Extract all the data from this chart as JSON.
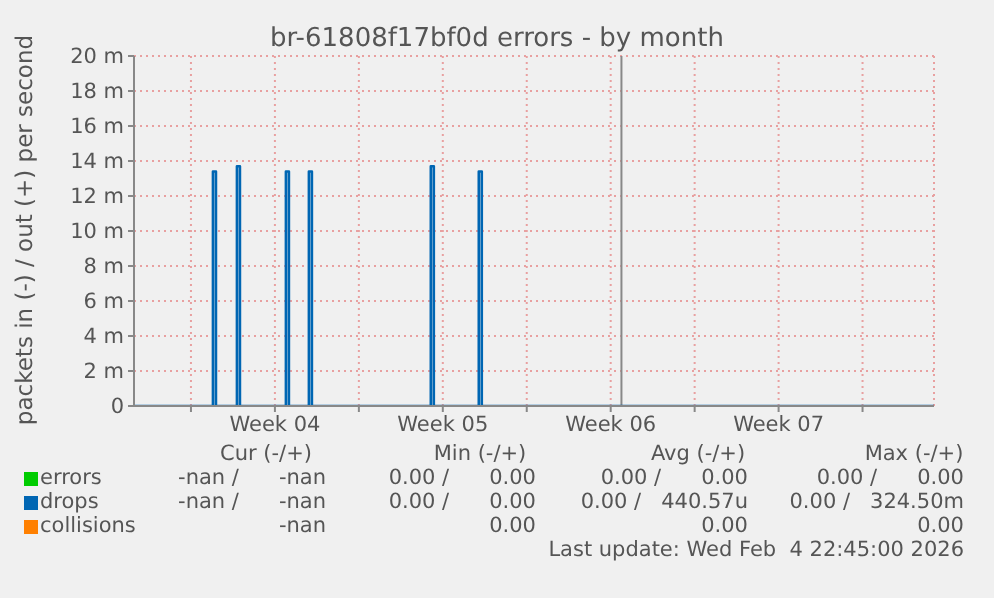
{
  "chart_data": {
    "type": "line",
    "title": "br-61808f17bf0d errors - by month",
    "ylabel": "packets in (-) / out (+) per second",
    "xlim": [
      "2026-01-15T15:00",
      "2026-02-17T23:30"
    ],
    "xticks": [
      {
        "value": "2026-01-18T00:00",
        "label": null
      },
      {
        "value": "2026-01-21T12:00",
        "label": "Week 04"
      },
      {
        "value": "2026-01-25T00:00",
        "label": null
      },
      {
        "value": "2026-01-28T12:00",
        "label": "Week 05"
      },
      {
        "value": "2026-02-01T00:00",
        "label": null
      },
      {
        "value": "2026-02-04T12:00",
        "label": "Week 06"
      },
      {
        "value": "2026-02-08T00:00",
        "label": null
      },
      {
        "value": "2026-02-11T12:00",
        "label": "Week 07"
      },
      {
        "value": "2026-02-15T00:00",
        "label": null
      }
    ],
    "ylim": [
      0,
      20
    ],
    "yticks": [
      0,
      {
        "value": 2,
        "label": "2 m"
      },
      {
        "value": 4,
        "label": "4 m"
      },
      {
        "value": 6,
        "label": "6 m"
      },
      {
        "value": 8,
        "label": "8 m"
      },
      {
        "value": 10,
        "label": "10 m"
      },
      {
        "value": 12,
        "label": "12 m"
      },
      {
        "value": 14,
        "label": "14 m"
      },
      {
        "value": 16,
        "label": "16 m"
      },
      {
        "value": 18,
        "label": "18 m"
      },
      {
        "value": 20,
        "label": "20 m"
      }
    ],
    "grid": true,
    "legend": "bottom",
    "marker": "none",
    "line_style": "solid",
    "ref_lines": [
      {
        "axis": "x",
        "value": "2026-02-04T22:45",
        "color": "#888888"
      }
    ],
    "series": [
      {
        "name": "errors",
        "color": "#00cc00"
      },
      {
        "name": "drops",
        "color": "#0066b3",
        "x": [
          "2026-01-15T15:00",
          "2026-01-18T22:00",
          "2026-01-18T22:00",
          "2026-01-19T01:00",
          "2026-01-19T01:00",
          "2026-01-19T22:00",
          "2026-01-19T22:00",
          "2026-01-20T01:00",
          "2026-01-20T01:00",
          "2026-01-21T23:00",
          "2026-01-21T23:00",
          "2026-01-22T02:00",
          "2026-01-22T02:00",
          "2026-01-22T22:00",
          "2026-01-22T22:00",
          "2026-01-23T01:00",
          "2026-01-23T01:00",
          "2026-01-28T00:00",
          "2026-01-28T00:00",
          "2026-01-28T03:00",
          "2026-01-28T03:00",
          "2026-01-30T00:00",
          "2026-01-30T00:00",
          "2026-01-30T03:00",
          "2026-01-30T03:00",
          "2026-02-17T23:30"
        ],
        "values": [
          0,
          0,
          13.4,
          13.4,
          0,
          0,
          13.7,
          13.7,
          0,
          0,
          13.4,
          13.4,
          0,
          0,
          13.4,
          13.4,
          0,
          0,
          13.7,
          13.7,
          0,
          0,
          13.4,
          13.4,
          0,
          0
        ]
      },
      {
        "name": "collisions",
        "color": "#ff8000"
      }
    ],
    "annotations": [
      "Cur (-/+)",
      "Min (-/+)",
      "Avg (-/+)",
      "Max (-/+)",
      "-nan /      -nan",
      "0.00 /      0.00",
      "0.00 /      0.00",
      "0.00 /      0.00",
      "-nan /      -nan",
      "0.00 /      0.00",
      "0.00 /   440.57u",
      "0.00 /   324.50m",
      "-nan",
      "0.00",
      "0.00",
      "0.00",
      "Last update: Wed Feb  4 22:45:00 2026"
    ]
  }
}
